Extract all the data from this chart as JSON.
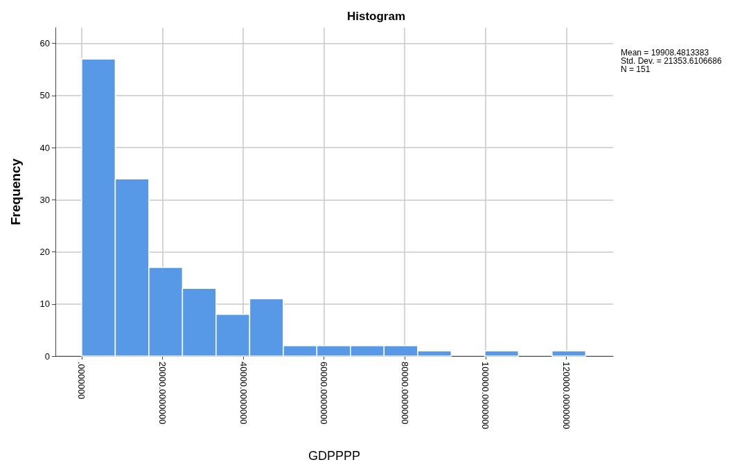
{
  "chart_data": {
    "type": "histogram",
    "title": "Histogram",
    "xlabel": "GDPPPP",
    "ylabel": "Frequency",
    "bins": [
      0,
      8320,
      16640,
      24960,
      33280,
      41600,
      49920,
      58240,
      66560,
      74880,
      83200,
      91520,
      99840,
      108160,
      116480,
      124800
    ],
    "values": [
      57,
      34,
      17,
      13,
      8,
      11,
      2,
      2,
      2,
      2,
      1,
      0,
      1,
      0,
      1
    ],
    "color": "#5799e6",
    "xlim": [
      -6500,
      131600
    ],
    "xticks": [
      {
        "value": 0,
        "label": ".0000000"
      },
      {
        "value": 20000,
        "label": "20000.0000000"
      },
      {
        "value": 40000,
        "label": "40000.0000000"
      },
      {
        "value": 60000,
        "label": "60000.0000000"
      },
      {
        "value": 80000,
        "label": "80000.0000000"
      },
      {
        "value": 100000,
        "label": "100000.0000000"
      },
      {
        "value": 120000,
        "label": "120000.0000000"
      }
    ],
    "ylim": [
      0,
      63
    ],
    "yticks": [
      0,
      10,
      20,
      30,
      40,
      50,
      60
    ],
    "grid": true,
    "annotations": [
      "Mean = 19908.4813383",
      "Std. Dev. = 21353.6106686",
      "N = 151"
    ]
  }
}
